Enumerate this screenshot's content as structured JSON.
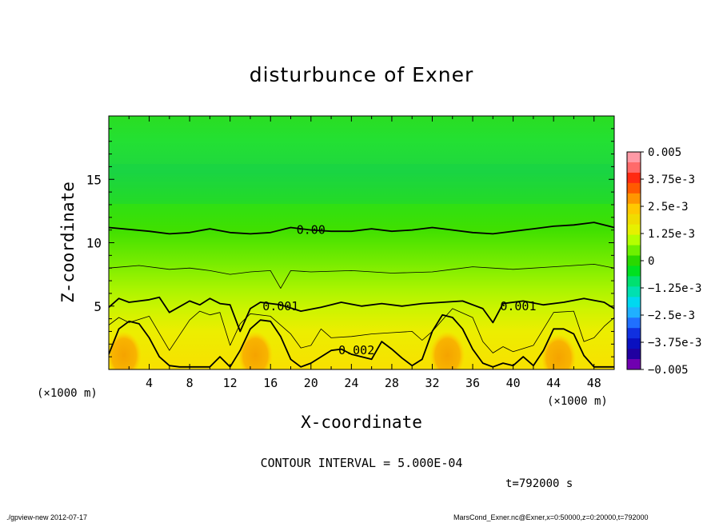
{
  "chart_data": {
    "type": "heatmap",
    "title": "disturbunce of Exner",
    "xlabel": "X-coordinate",
    "ylabel": "Z-coordinate",
    "x_unit": "(×1000 m)",
    "x_unit_right": "(×1000 m)",
    "xlim": [
      0,
      50
    ],
    "ylim": [
      0,
      20
    ],
    "x_ticks": [
      "4",
      "8",
      "12",
      "16",
      "20",
      "24",
      "28",
      "32",
      "36",
      "40",
      "44",
      "48"
    ],
    "y_ticks": [
      "5",
      "10",
      "15"
    ],
    "colorbar": {
      "labels": [
        "0.005",
        "3.75e-3",
        "2.5e-3",
        "1.25e-3",
        "0",
        "−1.25e-3",
        "−2.5e-3",
        "−3.75e-3",
        "−0.005"
      ],
      "values": [
        0.005,
        0.00375,
        0.0025,
        0.00125,
        0,
        -0.00125,
        -0.0025,
        -0.00375,
        -0.005
      ],
      "colors": [
        "#ff9aa6",
        "#ff6a6a",
        "#ff2a12",
        "#ff5a00",
        "#ff9600",
        "#ffc800",
        "#f0dc00",
        "#e6f000",
        "#b4ff00",
        "#6ef000",
        "#2ad800",
        "#00e020",
        "#00e070",
        "#00e0b0",
        "#00d8f0",
        "#20b0ff",
        "#2070ff",
        "#1030e0",
        "#0a10c0",
        "#2000a0",
        "#7000b0"
      ]
    },
    "contour_labels": [
      {
        "text": "0.00",
        "x": 20,
        "z": 11
      },
      {
        "text": "0.001",
        "x": 17,
        "z": 5
      },
      {
        "text": "0.001",
        "x": 40.5,
        "z": 5
      },
      {
        "text": "0.002",
        "x": 24.5,
        "z": 1.5
      }
    ],
    "contours": [
      {
        "level": "0",
        "bold": true,
        "x": [
          0,
          4,
          6,
          8,
          10,
          12,
          14,
          16,
          18,
          20,
          22,
          24,
          26,
          28,
          30,
          32,
          34,
          36,
          38,
          40,
          42,
          44,
          46,
          48,
          50
        ],
        "z": [
          11.2,
          10.9,
          10.7,
          10.8,
          11.1,
          10.8,
          10.7,
          10.8,
          11.2,
          11.0,
          10.9,
          10.9,
          11.1,
          10.9,
          11.0,
          11.2,
          11.0,
          10.8,
          10.7,
          10.9,
          11.1,
          11.3,
          11.4,
          11.6,
          11.2
        ]
      },
      {
        "level": "0.0005",
        "bold": false,
        "x": [
          0,
          3,
          6,
          8,
          10,
          12,
          14,
          16,
          17,
          18,
          20,
          24,
          28,
          32,
          34,
          36,
          40,
          44,
          48,
          50
        ],
        "z": [
          8.0,
          8.2,
          7.9,
          8.0,
          7.8,
          7.5,
          7.7,
          7.8,
          6.4,
          7.8,
          7.7,
          7.8,
          7.6,
          7.7,
          7.9,
          8.1,
          7.9,
          8.1,
          8.3,
          8.0
        ]
      },
      {
        "level": "0.001",
        "bold": true,
        "x": [
          0,
          1,
          2,
          4,
          5,
          6,
          8,
          9,
          10,
          11,
          12,
          13,
          14,
          15,
          17,
          19,
          21,
          23,
          25,
          27,
          29,
          31,
          33,
          35,
          37,
          38,
          39,
          41,
          43,
          45,
          47,
          49,
          50
        ],
        "z": [
          4.9,
          5.6,
          5.3,
          5.5,
          5.7,
          4.5,
          5.4,
          5.1,
          5.6,
          5.2,
          5.1,
          3.0,
          4.8,
          5.3,
          5.1,
          4.6,
          4.9,
          5.3,
          5.0,
          5.2,
          5.0,
          5.2,
          5.3,
          5.4,
          4.8,
          3.7,
          5.2,
          5.4,
          5.1,
          5.3,
          5.6,
          5.3,
          4.8
        ]
      },
      {
        "level": "0.0015",
        "bold": false,
        "x": [
          0,
          1,
          2,
          4,
          6,
          8,
          9,
          10,
          11,
          12,
          13,
          14,
          16,
          18,
          19,
          20,
          21,
          22,
          24,
          26,
          28,
          30,
          31,
          32,
          34,
          36,
          37,
          38,
          39,
          40,
          42,
          44,
          46,
          47,
          48,
          49,
          50
        ],
        "z": [
          3.5,
          4.1,
          3.7,
          4.2,
          1.5,
          3.9,
          4.6,
          4.3,
          4.5,
          1.9,
          3.6,
          4.4,
          4.2,
          2.8,
          1.7,
          1.9,
          3.2,
          2.5,
          2.6,
          2.8,
          2.9,
          3.0,
          2.3,
          3.0,
          4.8,
          4.1,
          2.2,
          1.3,
          1.8,
          1.4,
          1.9,
          4.5,
          4.6,
          2.2,
          2.5,
          3.4,
          4.1
        ]
      },
      {
        "level": "0.002",
        "bold": true,
        "x": [
          0,
          1,
          2,
          3,
          4,
          5,
          6,
          7,
          8,
          10,
          11,
          12,
          13,
          14,
          15,
          16,
          17,
          18,
          19,
          20,
          22,
          23,
          24,
          26,
          27,
          28,
          29,
          30,
          31,
          32,
          33,
          34,
          35,
          36,
          37,
          38,
          39,
          40,
          41,
          42,
          43,
          44,
          45,
          46,
          47,
          48,
          50
        ],
        "z": [
          1.2,
          3.2,
          3.8,
          3.6,
          2.5,
          1.0,
          0.3,
          0.2,
          0.2,
          0.2,
          1.0,
          0.2,
          1.5,
          3.2,
          3.9,
          3.8,
          2.6,
          0.8,
          0.2,
          0.5,
          1.5,
          1.6,
          1.2,
          0.8,
          2.2,
          1.6,
          0.9,
          0.3,
          0.8,
          3.0,
          4.3,
          4.1,
          3.2,
          1.6,
          0.5,
          0.2,
          0.5,
          0.3,
          1.0,
          0.3,
          1.5,
          3.2,
          3.2,
          2.8,
          1.1,
          0.2,
          0.2
        ]
      }
    ],
    "hot_spots": [
      {
        "x": 1.5,
        "z": 1.3
      },
      {
        "x": 14.5,
        "z": 1.3
      },
      {
        "x": 33.5,
        "z": 1.3
      },
      {
        "x": 44.5,
        "z": 1.1
      }
    ],
    "annotation": "CONTOUR INTERVAL = 5.000E-04",
    "time_label": "t=792000 s"
  },
  "footer": {
    "left": "./gpview-new  2012-07-17",
    "right": "MarsCond_Exner.nc@Exner,x=0:50000,z=0:20000,t=792000"
  }
}
